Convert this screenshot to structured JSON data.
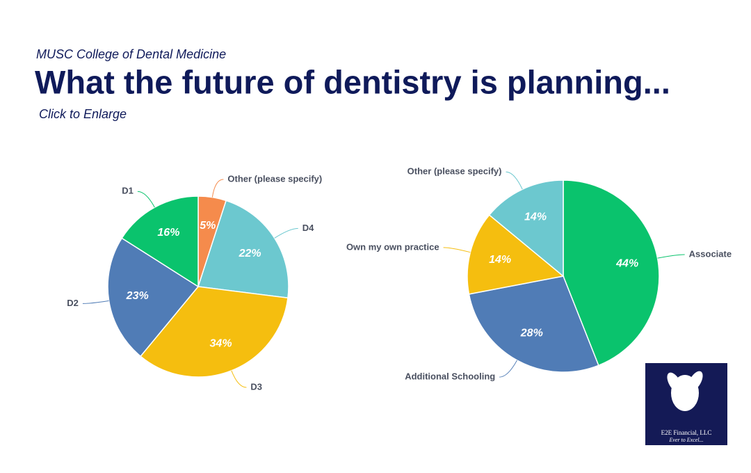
{
  "header": {
    "subtitle": "MUSC College of Dental Medicine",
    "title": "What the future of dentistry is planning...",
    "link": "Click to Enlarge"
  },
  "logo": {
    "name": "E2E Financial, LLC",
    "tagline": "Ever to Excel..."
  },
  "chart_data": [
    {
      "type": "pie",
      "categories": [
        "Other (please specify)",
        "D4",
        "D3",
        "D2",
        "D1"
      ],
      "values": [
        5,
        22,
        34,
        23,
        16
      ],
      "value_labels": [
        "5%",
        "22%",
        "34%",
        "23%",
        "16%"
      ],
      "colors": [
        "#f58b4c",
        "#6cc8cf",
        "#f5be0f",
        "#507cb6",
        "#0ac36d"
      ]
    },
    {
      "type": "pie",
      "categories": [
        "Associate",
        "Additional Schooling",
        "Own my own practice",
        "Other (please specify)"
      ],
      "values": [
        44,
        28,
        14,
        14
      ],
      "value_labels": [
        "44%",
        "28%",
        "14%",
        "14%"
      ],
      "colors": [
        "#0ac36d",
        "#507cb6",
        "#f5be0f",
        "#6cc8cf"
      ]
    }
  ]
}
